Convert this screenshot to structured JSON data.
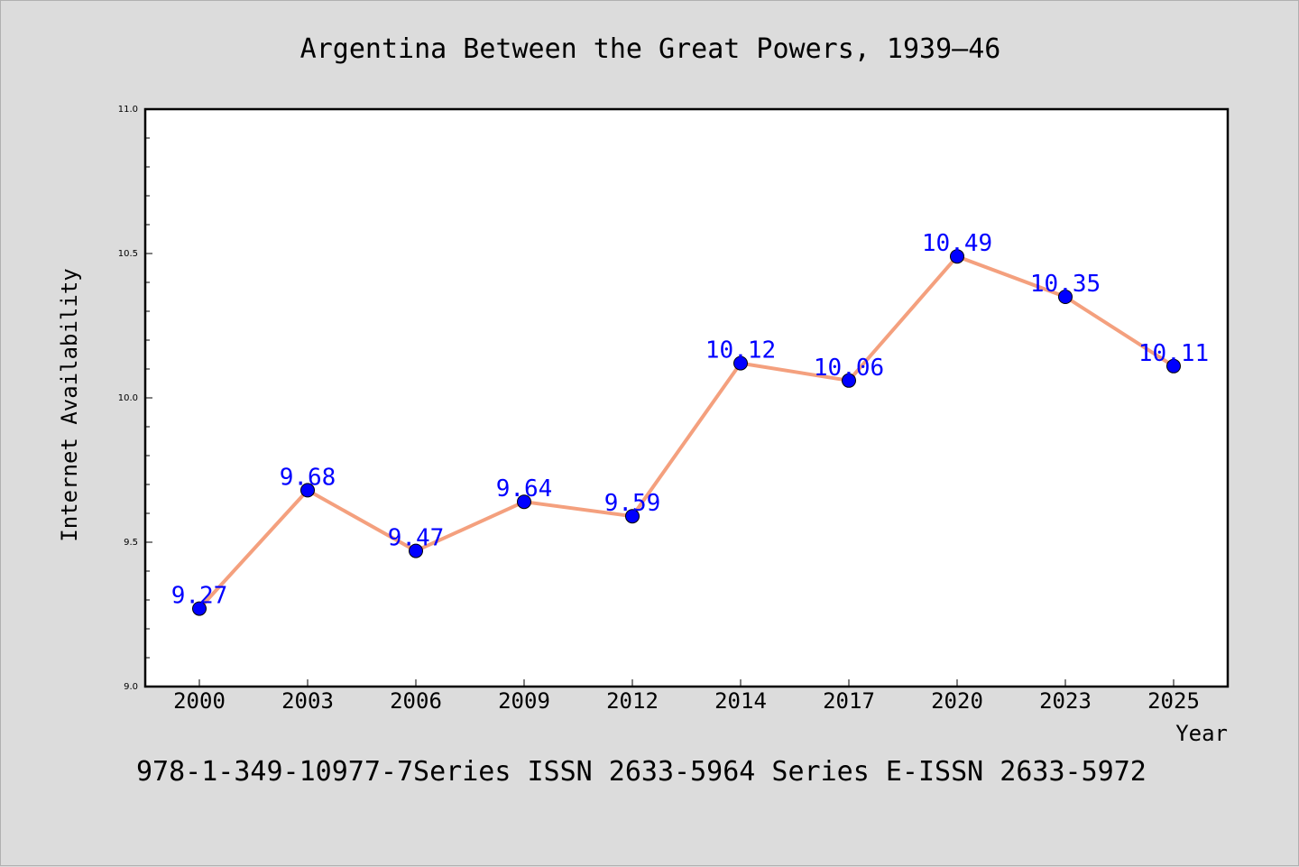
{
  "chart_data": {
    "type": "line",
    "title": "Argentina Between the Great Powers, 1939–46",
    "xlabel": "Year",
    "ylabel": "Internet Availability",
    "categories": [
      "2000",
      "2003",
      "2006",
      "2009",
      "2012",
      "2014",
      "2017",
      "2020",
      "2023",
      "2025"
    ],
    "series": [
      {
        "values": [
          9.27,
          9.68,
          9.47,
          9.64,
          9.59,
          10.12,
          10.06,
          10.49,
          10.35,
          10.11
        ],
        "labels": [
          "9.27",
          "9.68",
          "9.47",
          "9.64",
          "9.59",
          "10.12",
          "10.06",
          "10.49",
          "10.35",
          "10.11"
        ],
        "line_color": "#f4a07e",
        "marker_color": "#0000ff"
      }
    ],
    "ylim": [
      9.0,
      11.0
    ],
    "yticks": [
      "9.0",
      "9.5",
      "10.0",
      "10.5",
      "11.0"
    ],
    "grid": false,
    "footer": "978-1-349-10977-7Series ISSN 2633-5964 Series E-ISSN 2633-5972"
  }
}
